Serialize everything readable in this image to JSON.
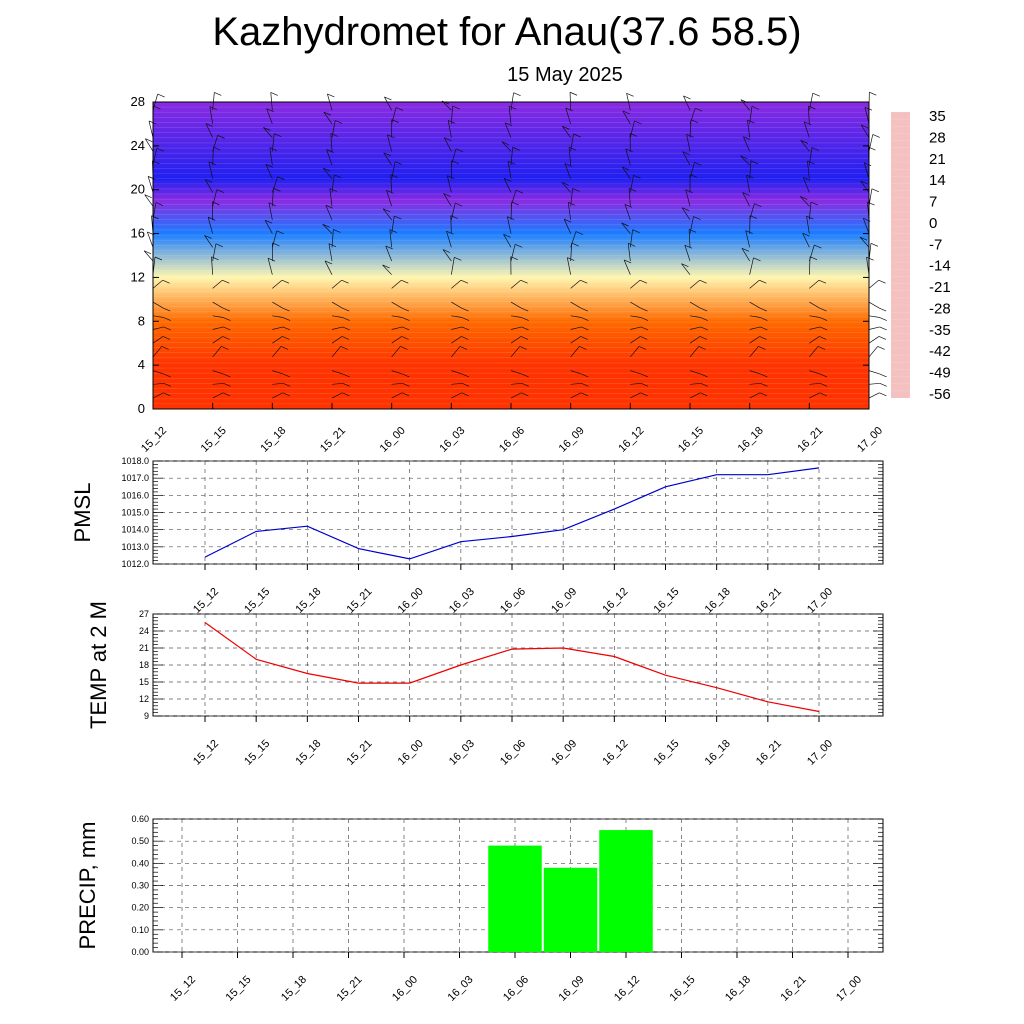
{
  "title": "Kazhydromet for Anau(37.6 58.5)",
  "subtitle": "15 May 2025",
  "chart_data": [
    {
      "type": "heatmap",
      "name": "vertical temperature & wind cross-section",
      "x_ticks": [
        "15_12",
        "15_15",
        "15_18",
        "15_21",
        "16_00",
        "16_03",
        "16_06",
        "16_09",
        "16_12",
        "16_15",
        "16_18",
        "16_21",
        "17_00"
      ],
      "ylim": [
        0,
        28
      ],
      "y_ticks": [
        "0",
        "4",
        "8",
        "12",
        "16",
        "20",
        "24",
        "28"
      ],
      "colorbar": {
        "labels": [
          "35",
          "28",
          "21",
          "14",
          "7",
          "0",
          "-7",
          "-14",
          "-21",
          "-28",
          "-35",
          "-42",
          "-49",
          "-56"
        ],
        "colors": [
          "#f4c0c0",
          "#e11a1a",
          "#ff3300",
          "#ff6a00",
          "#ffa000",
          "#ffd24a",
          "#fff6b0",
          "#b8e6f0",
          "#20b4ff",
          "#1a7dff",
          "#1a3dff",
          "#1010e0",
          "#2020f0",
          "#8a2be2"
        ]
      },
      "temperature_profile_by_height": [
        {
          "h": 0,
          "t": 24
        },
        {
          "h": 4,
          "t": 22
        },
        {
          "h": 8,
          "t": 14
        },
        {
          "h": 12,
          "t": -10
        },
        {
          "h": 16,
          "t": -30
        },
        {
          "h": 19,
          "t": -58
        },
        {
          "h": 21,
          "t": -52
        },
        {
          "h": 28,
          "t": -60
        }
      ],
      "wind_barbs": true
    },
    {
      "type": "line",
      "ylabel": "PMSL",
      "color": "#0000cc",
      "x_ticks": [
        "15_12",
        "15_15",
        "15_18",
        "15_21",
        "16_00",
        "16_03",
        "16_06",
        "16_09",
        "16_12",
        "16_15",
        "16_18",
        "16_21",
        "17_00"
      ],
      "y_ticks": [
        "1012.0",
        "1013.0",
        "1014.0",
        "1015.0",
        "1016.0",
        "1017.0",
        "1018.0"
      ],
      "ylim": [
        1012.0,
        1018.0
      ],
      "values": [
        1012.4,
        1013.9,
        1014.2,
        1012.9,
        1012.3,
        1013.3,
        1013.6,
        1014.0,
        1015.2,
        1016.5,
        1017.2,
        1017.2,
        1017.6
      ]
    },
    {
      "type": "line",
      "ylabel": "TEMP at 2 M",
      "color": "#ee0000",
      "x_ticks": [
        "15_12",
        "15_15",
        "15_18",
        "15_21",
        "16_00",
        "16_03",
        "16_06",
        "16_09",
        "16_12",
        "16_15",
        "16_18",
        "16_21",
        "17_00"
      ],
      "y_ticks": [
        "9",
        "12",
        "15",
        "18",
        "21",
        "24",
        "27"
      ],
      "ylim": [
        9,
        27
      ],
      "values": [
        25.5,
        19.0,
        16.5,
        14.8,
        14.8,
        18.0,
        20.8,
        21.0,
        19.5,
        16.2,
        14.0,
        11.5,
        9.8
      ]
    },
    {
      "type": "bar",
      "ylabel": "PRECIP, mm",
      "color": "#00ff00",
      "x_ticks": [
        "15_12",
        "15_15",
        "15_18",
        "15_21",
        "16_00",
        "16_03",
        "16_06",
        "16_09",
        "16_12",
        "16_15",
        "16_18",
        "16_21",
        "17_00"
      ],
      "y_ticks": [
        "0.00",
        "0.10",
        "0.20",
        "0.30",
        "0.40",
        "0.50",
        "0.60"
      ],
      "ylim": [
        0,
        0.6
      ],
      "values": [
        0,
        0,
        0,
        0,
        0,
        0,
        0.48,
        0.38,
        0.55,
        0,
        0,
        0,
        0
      ]
    }
  ]
}
